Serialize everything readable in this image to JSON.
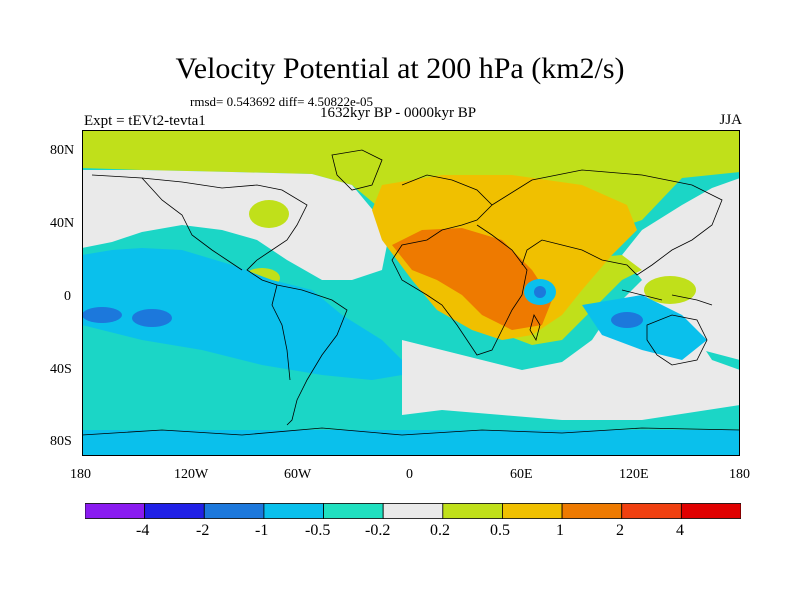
{
  "header": {
    "title": "Velocity Potential at 200 hPa (km2/s)",
    "stats": "rmsd= 0.543692 diff= 4.50822e-05",
    "experiment": "Expt = tEVt2-tevta1",
    "period": "1632kyr BP - 0000kyr BP",
    "season": "JJA"
  },
  "axes": {
    "lat_labels": [
      "80N",
      "40N",
      "0",
      "40S",
      "80S"
    ],
    "lon_labels": [
      "180",
      "120W",
      "60W",
      "0",
      "60E",
      "120E",
      "180"
    ]
  },
  "colorbar": {
    "colors": [
      "#8a1bf0",
      "#2020e6",
      "#1c78dc",
      "#0ac0ec",
      "#20e0c0",
      "#eaeaea",
      "#c0e01a",
      "#f0c000",
      "#ee7a00",
      "#f04010",
      "#e00000"
    ],
    "labels": [
      "-4",
      "-2",
      "-1",
      "-0.5",
      "-0.2",
      "0.2",
      "0.5",
      "1",
      "2",
      "4"
    ]
  }
}
